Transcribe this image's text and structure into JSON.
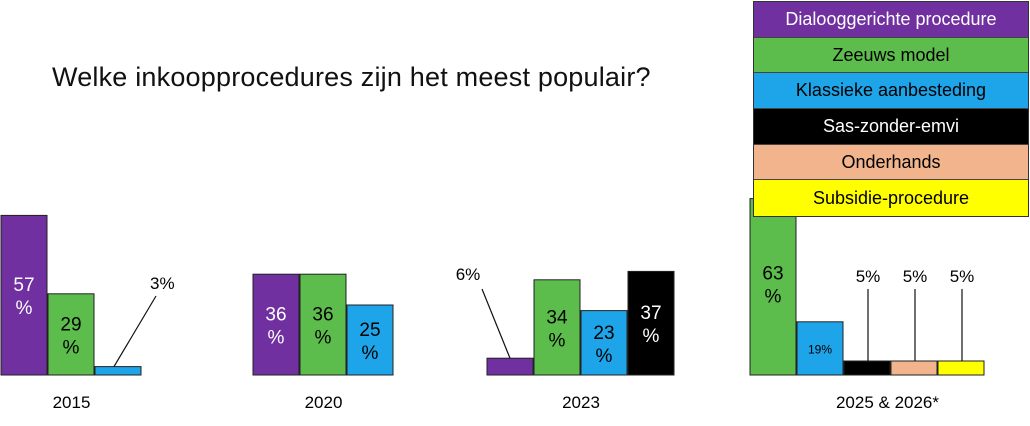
{
  "chart_data": {
    "type": "bar",
    "title": "Welke inkoopprocedures zijn het meest populair?",
    "xlabel": "",
    "ylabel": "",
    "legend_position": "top-right",
    "grid": false,
    "series": [
      {
        "name": "Dialooggerichte procedure",
        "color": "#7030a0",
        "text_color": "#ffffff"
      },
      {
        "name": "Zeeuws model",
        "color": "#5cbc4c",
        "text_color": "#000000"
      },
      {
        "name": "Klassieke aanbesteding",
        "color": "#1ea4e9",
        "text_color": "#000000"
      },
      {
        "name": "Sas-zonder-emvi",
        "color": "#000000",
        "text_color": "#ffffff"
      },
      {
        "name": "Onderhands",
        "color": "#f2b48c",
        "text_color": "#000000"
      },
      {
        "name": "Subsidie-procedure",
        "color": "#ffff00",
        "text_color": "#000000"
      }
    ],
    "groups": [
      {
        "category": "2015",
        "bars": [
          {
            "series": 0,
            "value": 57,
            "label": "57\n%",
            "label_pos": "inside"
          },
          {
            "series": 1,
            "value": 29,
            "label": "29\n%",
            "label_pos": "inside"
          },
          {
            "series": 2,
            "value": 3,
            "label": "3%",
            "label_pos": "callout-right"
          }
        ]
      },
      {
        "category": "2020",
        "bars": [
          {
            "series": 0,
            "value": 36,
            "label": "36\n%",
            "label_pos": "inside"
          },
          {
            "series": 1,
            "value": 36,
            "label": "36\n%",
            "label_pos": "inside"
          },
          {
            "series": 2,
            "value": 25,
            "label": "25\n%",
            "label_pos": "inside"
          }
        ]
      },
      {
        "category": "2023",
        "bars": [
          {
            "series": 0,
            "value": 6,
            "label": "6%",
            "label_pos": "callout-left"
          },
          {
            "series": 1,
            "value": 34,
            "label": "34\n%",
            "label_pos": "inside"
          },
          {
            "series": 2,
            "value": 23,
            "label": "23\n%",
            "label_pos": "inside"
          },
          {
            "series": 3,
            "value": 37,
            "label": "37\n%",
            "label_pos": "inside"
          }
        ]
      },
      {
        "category": "2025 & 2026*",
        "bars": [
          {
            "series": 1,
            "value": 63,
            "label": "63\n%",
            "label_pos": "inside"
          },
          {
            "series": 2,
            "value": 19,
            "label": "19%",
            "label_pos": "inside-small"
          },
          {
            "series": 3,
            "value": 5,
            "label": "5%",
            "label_pos": "callout-up"
          },
          {
            "series": 4,
            "value": 5,
            "label": "5%",
            "label_pos": "callout-up"
          },
          {
            "series": 5,
            "value": 5,
            "label": "5%",
            "label_pos": "callout-up"
          }
        ]
      }
    ]
  }
}
